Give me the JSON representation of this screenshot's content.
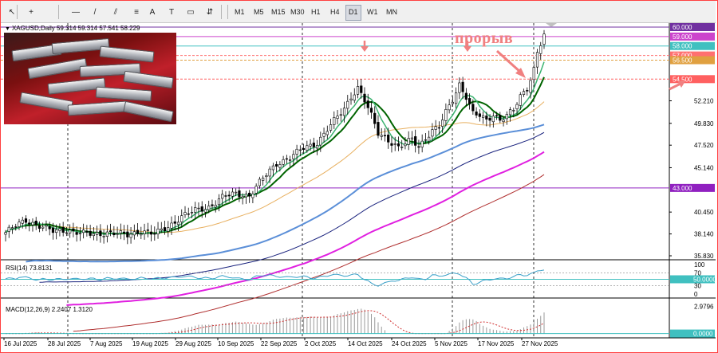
{
  "toolbar": {
    "tools": [
      {
        "name": "cursor-icon",
        "glyph": "↖"
      },
      {
        "name": "crosshair-icon",
        "glyph": "+"
      },
      {
        "name": "horizontal-line-icon",
        "glyph": "—"
      },
      {
        "name": "trendline-icon",
        "glyph": "/"
      },
      {
        "name": "channel-icon",
        "glyph": "⫽"
      },
      {
        "name": "fibonacci-icon",
        "glyph": "≡"
      },
      {
        "name": "text-icon",
        "glyph": "A"
      },
      {
        "name": "label-icon",
        "glyph": "T"
      },
      {
        "name": "shapes-icon",
        "glyph": "▭"
      },
      {
        "name": "arrows-icon",
        "glyph": "⇵"
      }
    ],
    "timeframes": [
      "M1",
      "M5",
      "M15",
      "M30",
      "H1",
      "H4",
      "D1",
      "W1",
      "MN"
    ],
    "active_timeframe": "D1"
  },
  "chart": {
    "symbol_line": "XAGUSD,Daily  59.314 59.314 57.541 58.229",
    "annotation": "прорыв",
    "price_labels": [
      "60.000",
      "59.000",
      "58.000",
      "57.000",
      "56.500",
      "54.500",
      "52.210",
      "49.830",
      "47.520",
      "45.140",
      "43.000",
      "40.450",
      "38.140",
      "35.830"
    ],
    "date_labels": [
      "16 Jul 2025",
      "28 Jul 2025",
      "7 Aug 2025",
      "19 Aug 2025",
      "29 Aug 2025",
      "10 Sep 2025",
      "22 Sep 2025",
      "2 Oct 2025",
      "14 Oct 2025",
      "24 Oct 2025",
      "5 Nov 2025",
      "17 Nov 2025",
      "27 Nov 2025"
    ],
    "levels": [
      {
        "price": 60.0,
        "label": "60.000",
        "color": "#7030a0",
        "style": "solid"
      },
      {
        "price": 59.0,
        "label": "59.000",
        "color": "#cc44cc",
        "style": "solid"
      },
      {
        "price": 58.0,
        "label": "58.000",
        "color": "#40c0c0",
        "style": "solid"
      },
      {
        "price": 57.0,
        "label": "57.000",
        "color": "#ff7070",
        "style": "dashed"
      },
      {
        "price": 56.5,
        "label": "56.500",
        "color": "#e0a040",
        "style": "dashed"
      },
      {
        "price": 54.5,
        "label": "54.500",
        "color": "#ff6060",
        "style": "dashed"
      },
      {
        "price": 43.0,
        "label": "43.000",
        "color": "#9020c0",
        "style": "solid"
      }
    ]
  },
  "rsi": {
    "label": "RSI(14) 73.8131",
    "ticks": [
      "100",
      "70",
      "50.0000",
      "30",
      "0"
    ],
    "value": 73.8131
  },
  "macd": {
    "label": "MACD(12,26,9) 2.2407 1.3120",
    "ticks": [
      "2.9796",
      "0.0000"
    ],
    "main": 2.2407,
    "signal": 1.312
  },
  "colors": {
    "bull": "#ffffff",
    "bear": "#000000",
    "ema_fast": "#3cb371",
    "ema_slow": "#006400",
    "ma50": "#e8b060",
    "ma100": "#5b8fd8",
    "ma150": "#1a237e",
    "ma200": "#e020e0",
    "ma250": "#b03030",
    "arrow": "#f08080",
    "rsi_line": "#3aa0c8",
    "grid": "#000000"
  },
  "chart_data": {
    "type": "candlestick",
    "symbol": "XAGUSD",
    "timeframe": "Daily",
    "last_bar": {
      "open": 59.314,
      "high": 59.314,
      "low": 57.541,
      "close": 58.229
    },
    "close_series": [
      {
        "date": "16 Jul 2025",
        "close": 38.2
      },
      {
        "date": "28 Jul 2025",
        "close": 38.2
      },
      {
        "date": "7 Aug 2025",
        "close": 38.3
      },
      {
        "date": "19 Aug 2025",
        "close": 37.8
      },
      {
        "date": "29 Aug 2025",
        "close": 40.0
      },
      {
        "date": "10 Sep 2025",
        "close": 42.0
      },
      {
        "date": "22 Sep 2025",
        "close": 44.0
      },
      {
        "date": "2 Oct 2025",
        "close": 47.3
      },
      {
        "date": "14 Oct 2025",
        "close": 53.0
      },
      {
        "date": "24 Oct 2025",
        "close": 48.6
      },
      {
        "date": "5 Nov 2025",
        "close": 48.2
      },
      {
        "date": "17 Nov 2025",
        "close": 51.0
      },
      {
        "date": "27 Nov 2025",
        "close": 56.5
      }
    ],
    "ylim": [
      35.83,
      60.0
    ]
  }
}
